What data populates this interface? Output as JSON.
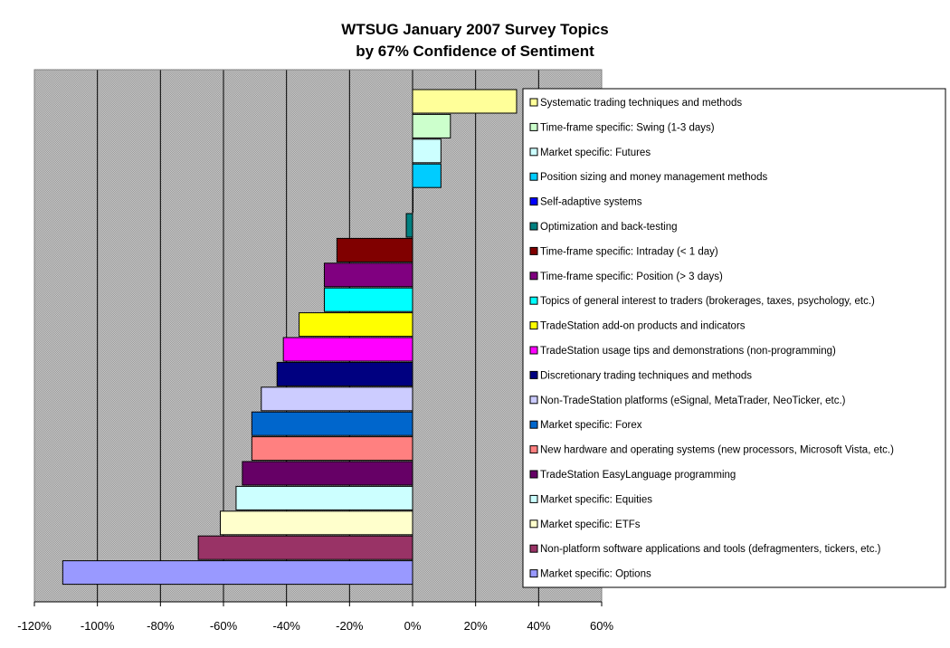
{
  "chart_data": {
    "type": "bar",
    "orientation": "horizontal",
    "title_line1": "WTSUG January 2007 Survey Topics",
    "title_line2": "by 67% Confidence of Sentiment",
    "xlim": [
      -120,
      60
    ],
    "x_ticks": [
      "-120%",
      "-100%",
      "-80%",
      "-60%",
      "-40%",
      "-20%",
      "0%",
      "20%",
      "40%",
      "60%"
    ],
    "x_tick_values": [
      -120,
      -100,
      -80,
      -60,
      -40,
      -20,
      0,
      20,
      40,
      60
    ],
    "grid": true,
    "legend_position": "right",
    "categories": [
      "Systematic trading techniques and methods",
      "Time-frame specific: Swing (1-3 days)",
      "Market specific: Futures",
      "Position sizing and money management methods",
      "Self-adaptive systems",
      "Optimization and back-testing",
      "Time-frame specific: Intraday (< 1 day)",
      "Time-frame specific: Position (> 3 days)",
      "Topics of general interest to traders (brokerages, taxes, psychology, etc.)",
      "TradeStation add-on products and indicators",
      "TradeStation usage tips and demonstrations (non-programming)",
      "Discretionary trading techniques and methods",
      "Non-TradeStation platforms (eSignal, MetaTrader, NeoTicker, etc.)",
      "Market specific: Forex",
      "New hardware and operating systems (new processors, Microsoft Vista, etc.)",
      "TradeStation EasyLanguage programming",
      "Market specific: Equities",
      "Market specific: ETFs",
      "Non-platform software applications and tools (defragmenters, tickers, etc.)",
      "Market specific: Options"
    ],
    "values": [
      33,
      12,
      9,
      9,
      0,
      -2,
      -24,
      -28,
      -28,
      -36,
      -41,
      -43,
      -48,
      -51,
      -51,
      -54,
      -56,
      -61,
      -68,
      -111
    ],
    "colors": [
      "#FFFF99",
      "#CCFFCC",
      "#CCFFFF",
      "#00CCFF",
      "#0000FF",
      "#008080",
      "#800000",
      "#800080",
      "#00FFFF",
      "#FFFF00",
      "#FF00FF",
      "#000080",
      "#CCCCFF",
      "#0066CC",
      "#FF8080",
      "#660066",
      "#CCFFFF",
      "#FFFFCC",
      "#993366",
      "#9999FF"
    ]
  }
}
